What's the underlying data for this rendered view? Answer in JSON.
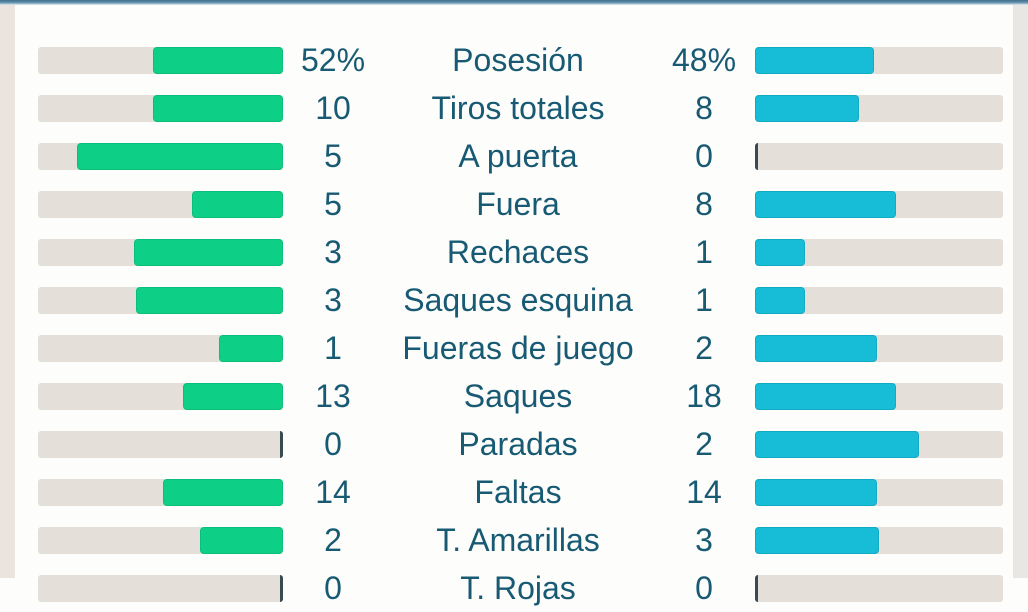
{
  "page": {
    "kind": "football-match-statistics-panel",
    "language": "es"
  },
  "colors": {
    "home_bar": "#0dd086",
    "away_bar": "#17bdd6",
    "bar_track": "#e4dfd8",
    "text": "#185a73",
    "zero_tick": "#3a4a52",
    "top_accent_dark": "#3e7090",
    "top_accent_light": "#a9c5d2",
    "background": "#fdfdfb",
    "left_strip": "#ebe4de",
    "right_strip": "#e9e7e3"
  },
  "chart_data": {
    "type": "bar",
    "orientation": "horizontal-opposed",
    "title": "",
    "legend_position": "none",
    "grid": false,
    "categories": [
      "Posesión",
      "Tiros totales",
      "A puerta",
      "Fuera",
      "Rechaces",
      "Saques esquina",
      "Fueras de juego",
      "Saques",
      "Paradas",
      "Faltas",
      "T. Amarillas",
      "T. Rojas"
    ],
    "series": [
      {
        "name": "home",
        "color": "#0dd086",
        "values": [
          "52%",
          10,
          5,
          5,
          3,
          3,
          1,
          13,
          0,
          14,
          2,
          0
        ],
        "fill_pct": [
          53,
          53,
          84,
          37,
          61,
          60,
          26,
          41,
          0,
          49,
          34,
          0
        ]
      },
      {
        "name": "away",
        "color": "#17bdd6",
        "values": [
          "48%",
          8,
          0,
          8,
          1,
          1,
          2,
          18,
          2,
          14,
          3,
          0
        ],
        "fill_pct": [
          48,
          42,
          0,
          57,
          20,
          20,
          49,
          57,
          66,
          49,
          50,
          0
        ]
      }
    ],
    "notes": "Last row (T. Rojas) is cut off by the bottom edge of the viewport; zero values are drawn as a thin dark tick at the inner end of the empty track."
  },
  "rows": [
    {
      "label": "Posesión",
      "home_value": "52%",
      "away_value": "48%",
      "home_fill_pct": 53,
      "away_fill_pct": 48
    },
    {
      "label": "Tiros totales",
      "home_value": "10",
      "away_value": "8",
      "home_fill_pct": 53,
      "away_fill_pct": 42
    },
    {
      "label": "A puerta",
      "home_value": "5",
      "away_value": "0",
      "home_fill_pct": 84,
      "away_fill_pct": 0
    },
    {
      "label": "Fuera",
      "home_value": "5",
      "away_value": "8",
      "home_fill_pct": 37,
      "away_fill_pct": 57
    },
    {
      "label": "Rechaces",
      "home_value": "3",
      "away_value": "1",
      "home_fill_pct": 61,
      "away_fill_pct": 20
    },
    {
      "label": "Saques esquina",
      "home_value": "3",
      "away_value": "1",
      "home_fill_pct": 60,
      "away_fill_pct": 20
    },
    {
      "label": "Fueras de juego",
      "home_value": "1",
      "away_value": "2",
      "home_fill_pct": 26,
      "away_fill_pct": 49
    },
    {
      "label": "Saques",
      "home_value": "13",
      "away_value": "18",
      "home_fill_pct": 41,
      "away_fill_pct": 57
    },
    {
      "label": "Paradas",
      "home_value": "0",
      "away_value": "2",
      "home_fill_pct": 0,
      "away_fill_pct": 66
    },
    {
      "label": "Faltas",
      "home_value": "14",
      "away_value": "14",
      "home_fill_pct": 49,
      "away_fill_pct": 49
    },
    {
      "label": "T. Amarillas",
      "home_value": "2",
      "away_value": "3",
      "home_fill_pct": 34,
      "away_fill_pct": 50
    },
    {
      "label": "T. Rojas",
      "home_value": "0",
      "away_value": "0",
      "home_fill_pct": 0,
      "away_fill_pct": 0
    }
  ]
}
